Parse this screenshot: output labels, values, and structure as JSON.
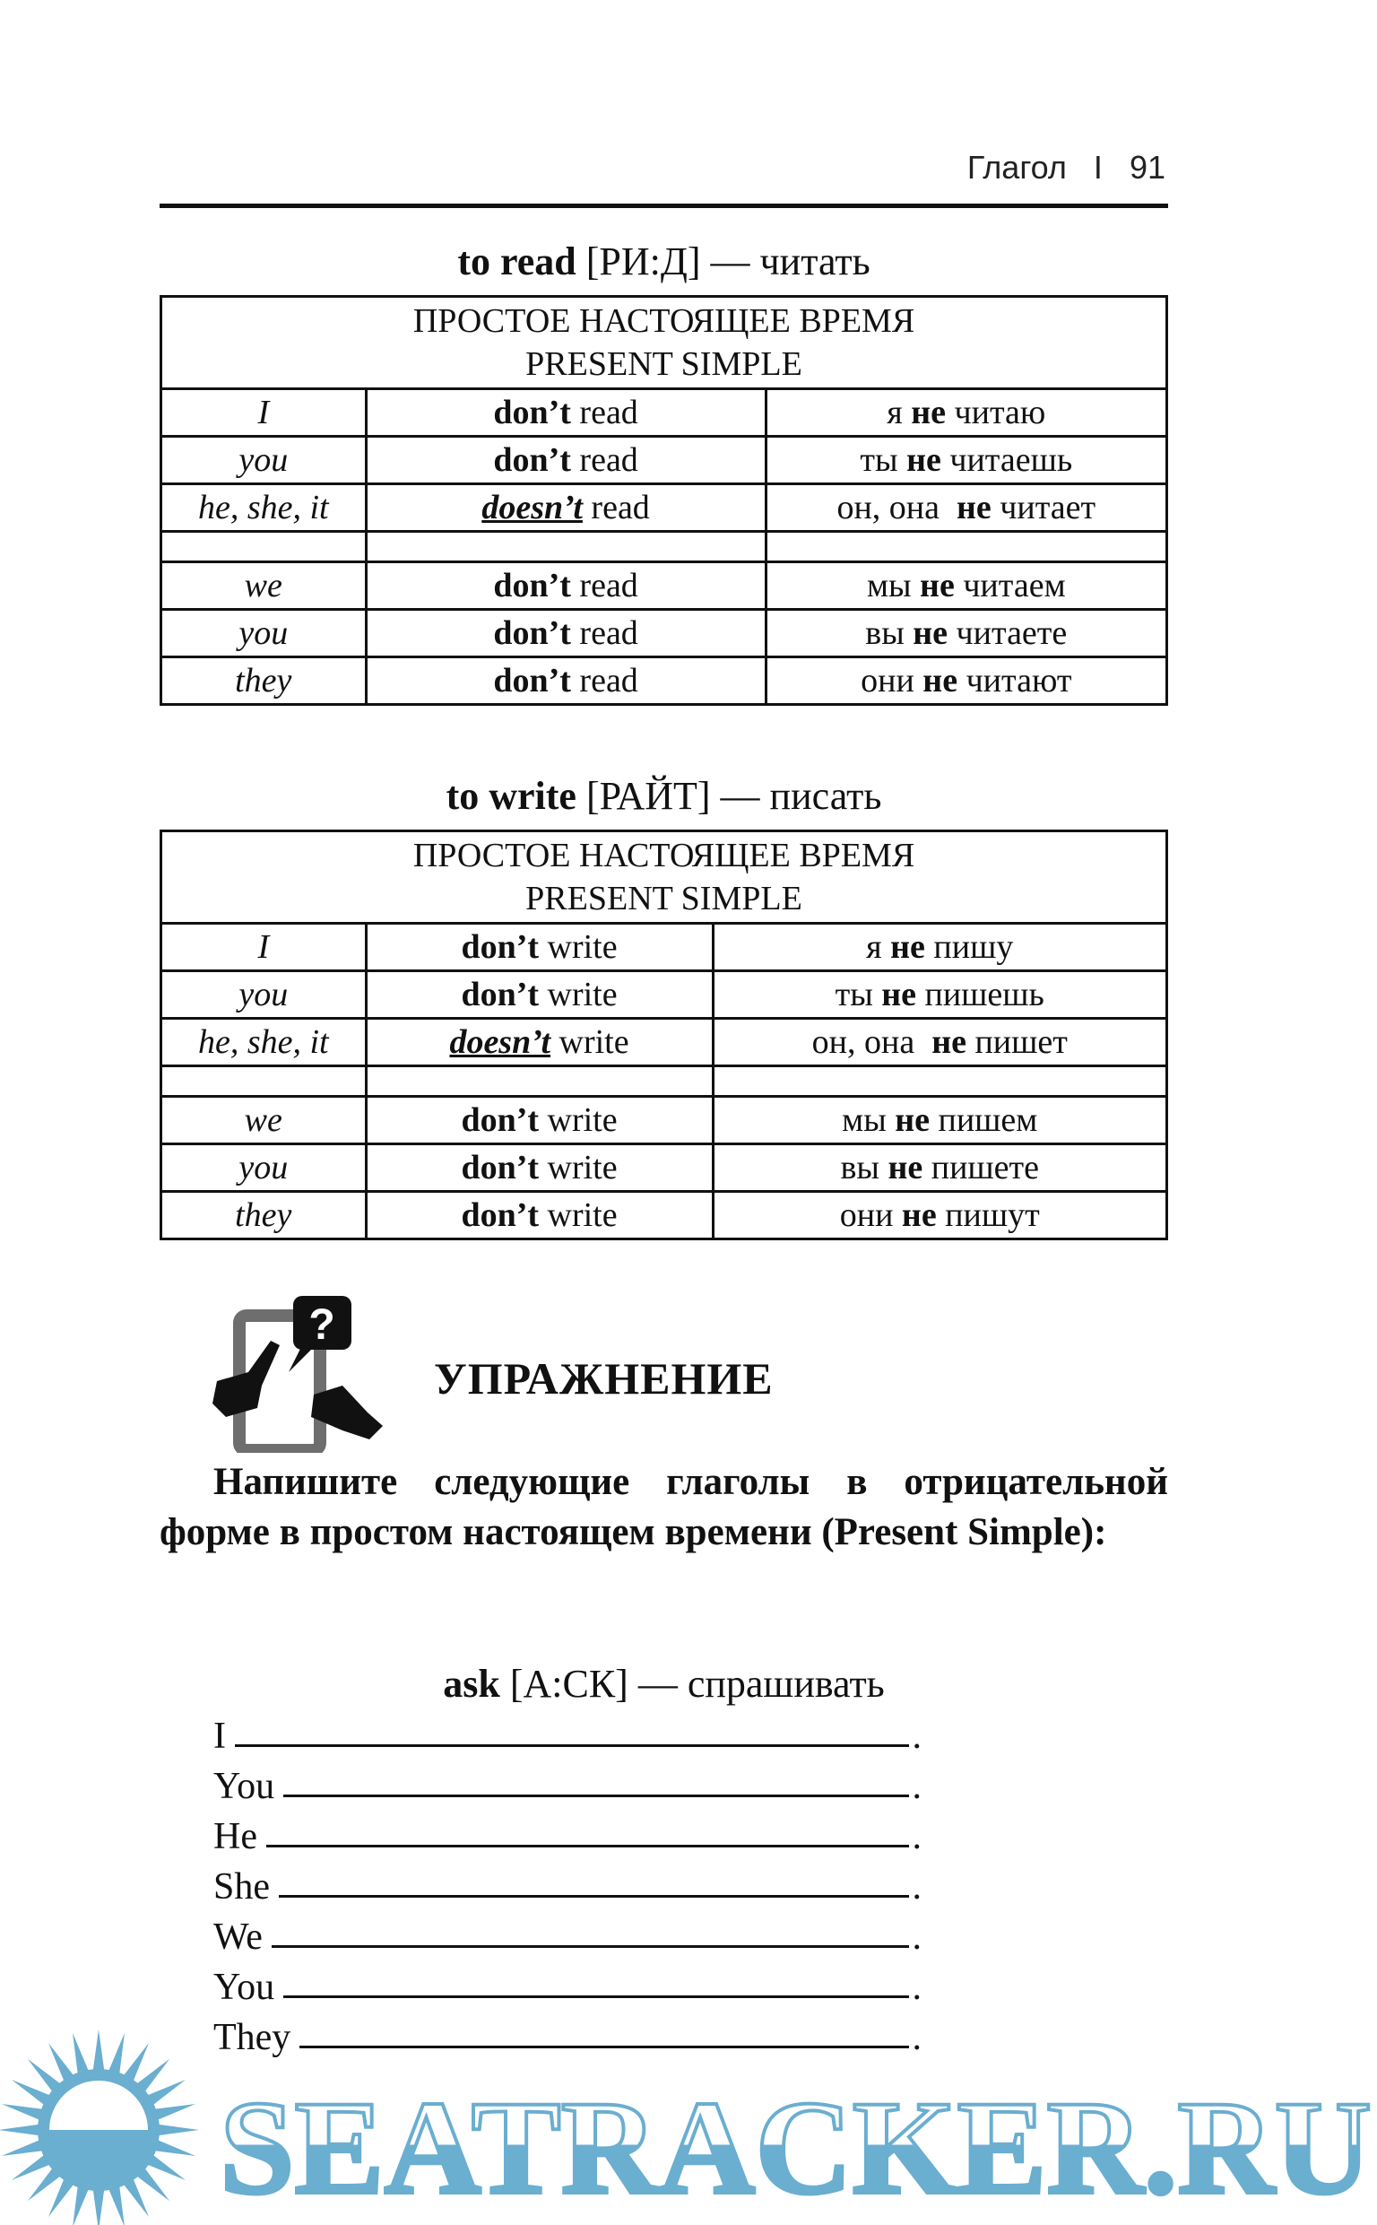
{
  "header": {
    "section": "Глагол",
    "separator": "I",
    "page_number": "91"
  },
  "tables": [
    {
      "verb_en": "to read",
      "transcription": "[РИ:Д]",
      "dash": "—",
      "verb_ru": "читать",
      "header_ru": "ПРОСТОЕ НАСТОЯЩЕЕ ВРЕМЯ",
      "header_en": "PRESENT SIMPLE",
      "rows": [
        {
          "person": "I",
          "neg": "don’t",
          "verb": "read",
          "ru_pre": "я",
          "ru_ne": "не",
          "ru_post": "читаю",
          "underline": false
        },
        {
          "person": "you",
          "neg": "don’t",
          "verb": "read",
          "ru_pre": "ты",
          "ru_ne": "не",
          "ru_post": "читаешь",
          "underline": false
        },
        {
          "person": "he, she, it",
          "neg": "doesn’t",
          "verb": "read",
          "ru_pre": "он, она",
          "ru_ne": "не",
          "ru_post": "читает",
          "underline": true
        },
        null,
        {
          "person": "we",
          "neg": "don’t",
          "verb": "read",
          "ru_pre": "мы",
          "ru_ne": "не",
          "ru_post": "читаем",
          "underline": false
        },
        {
          "person": "you",
          "neg": "don’t",
          "verb": "read",
          "ru_pre": "вы",
          "ru_ne": "не",
          "ru_post": "читаете",
          "underline": false
        },
        {
          "person": "they",
          "neg": "don’t",
          "verb": "read",
          "ru_pre": "они",
          "ru_ne": "не",
          "ru_post": "читают",
          "underline": false
        }
      ]
    },
    {
      "verb_en": "to write",
      "transcription": "[РАЙТ]",
      "dash": "—",
      "verb_ru": "писать",
      "header_ru": "ПРОСТОЕ НАСТОЯЩЕЕ ВРЕМЯ",
      "header_en": "PRESENT SIMPLE",
      "rows": [
        {
          "person": "I",
          "neg": "don’t",
          "verb": "write",
          "ru_pre": "я",
          "ru_ne": "не",
          "ru_post": "пишу",
          "underline": false
        },
        {
          "person": "you",
          "neg": "don’t",
          "verb": "write",
          "ru_pre": "ты",
          "ru_ne": "не",
          "ru_post": "пишешь",
          "underline": false
        },
        {
          "person": "he, she, it",
          "neg": "doesn’t",
          "verb": "write",
          "ru_pre": "он, она",
          "ru_ne": "не",
          "ru_post": "пишет",
          "underline": true
        },
        null,
        {
          "person": "we",
          "neg": "don’t",
          "verb": "write",
          "ru_pre": "мы",
          "ru_ne": "не",
          "ru_post": "пишем",
          "underline": false
        },
        {
          "person": "you",
          "neg": "don’t",
          "verb": "write",
          "ru_pre": "вы",
          "ru_ne": "не",
          "ru_post": "пишете",
          "underline": false
        },
        {
          "person": "they",
          "neg": "don’t",
          "verb": "write",
          "ru_pre": "они",
          "ru_ne": "не",
          "ru_post": "пишут",
          "underline": false
        }
      ]
    }
  ],
  "exercise": {
    "icon": "phone-question-hands-icon",
    "title": "УПРАЖНЕНИЕ",
    "instruction": "Напишите следующие глаголы в отрицательной форме в  простом настоящем времени (Present Simple):",
    "verb_en": "ask",
    "transcription": "[А:СК]",
    "dash": "—",
    "verb_ru": "спрашивать",
    "blanks": [
      {
        "pronoun": "I",
        "end": "."
      },
      {
        "pronoun": "You",
        "end": "."
      },
      {
        "pronoun": "He",
        "end": "."
      },
      {
        "pronoun": "She",
        "end": "."
      },
      {
        "pronoun": "We",
        "end": "."
      },
      {
        "pronoun": "You",
        "end": "."
      },
      {
        "pronoun": "They",
        "end": "."
      }
    ]
  },
  "watermark": {
    "text": "SEATRACKER.RU",
    "color": "#6aaed0"
  }
}
